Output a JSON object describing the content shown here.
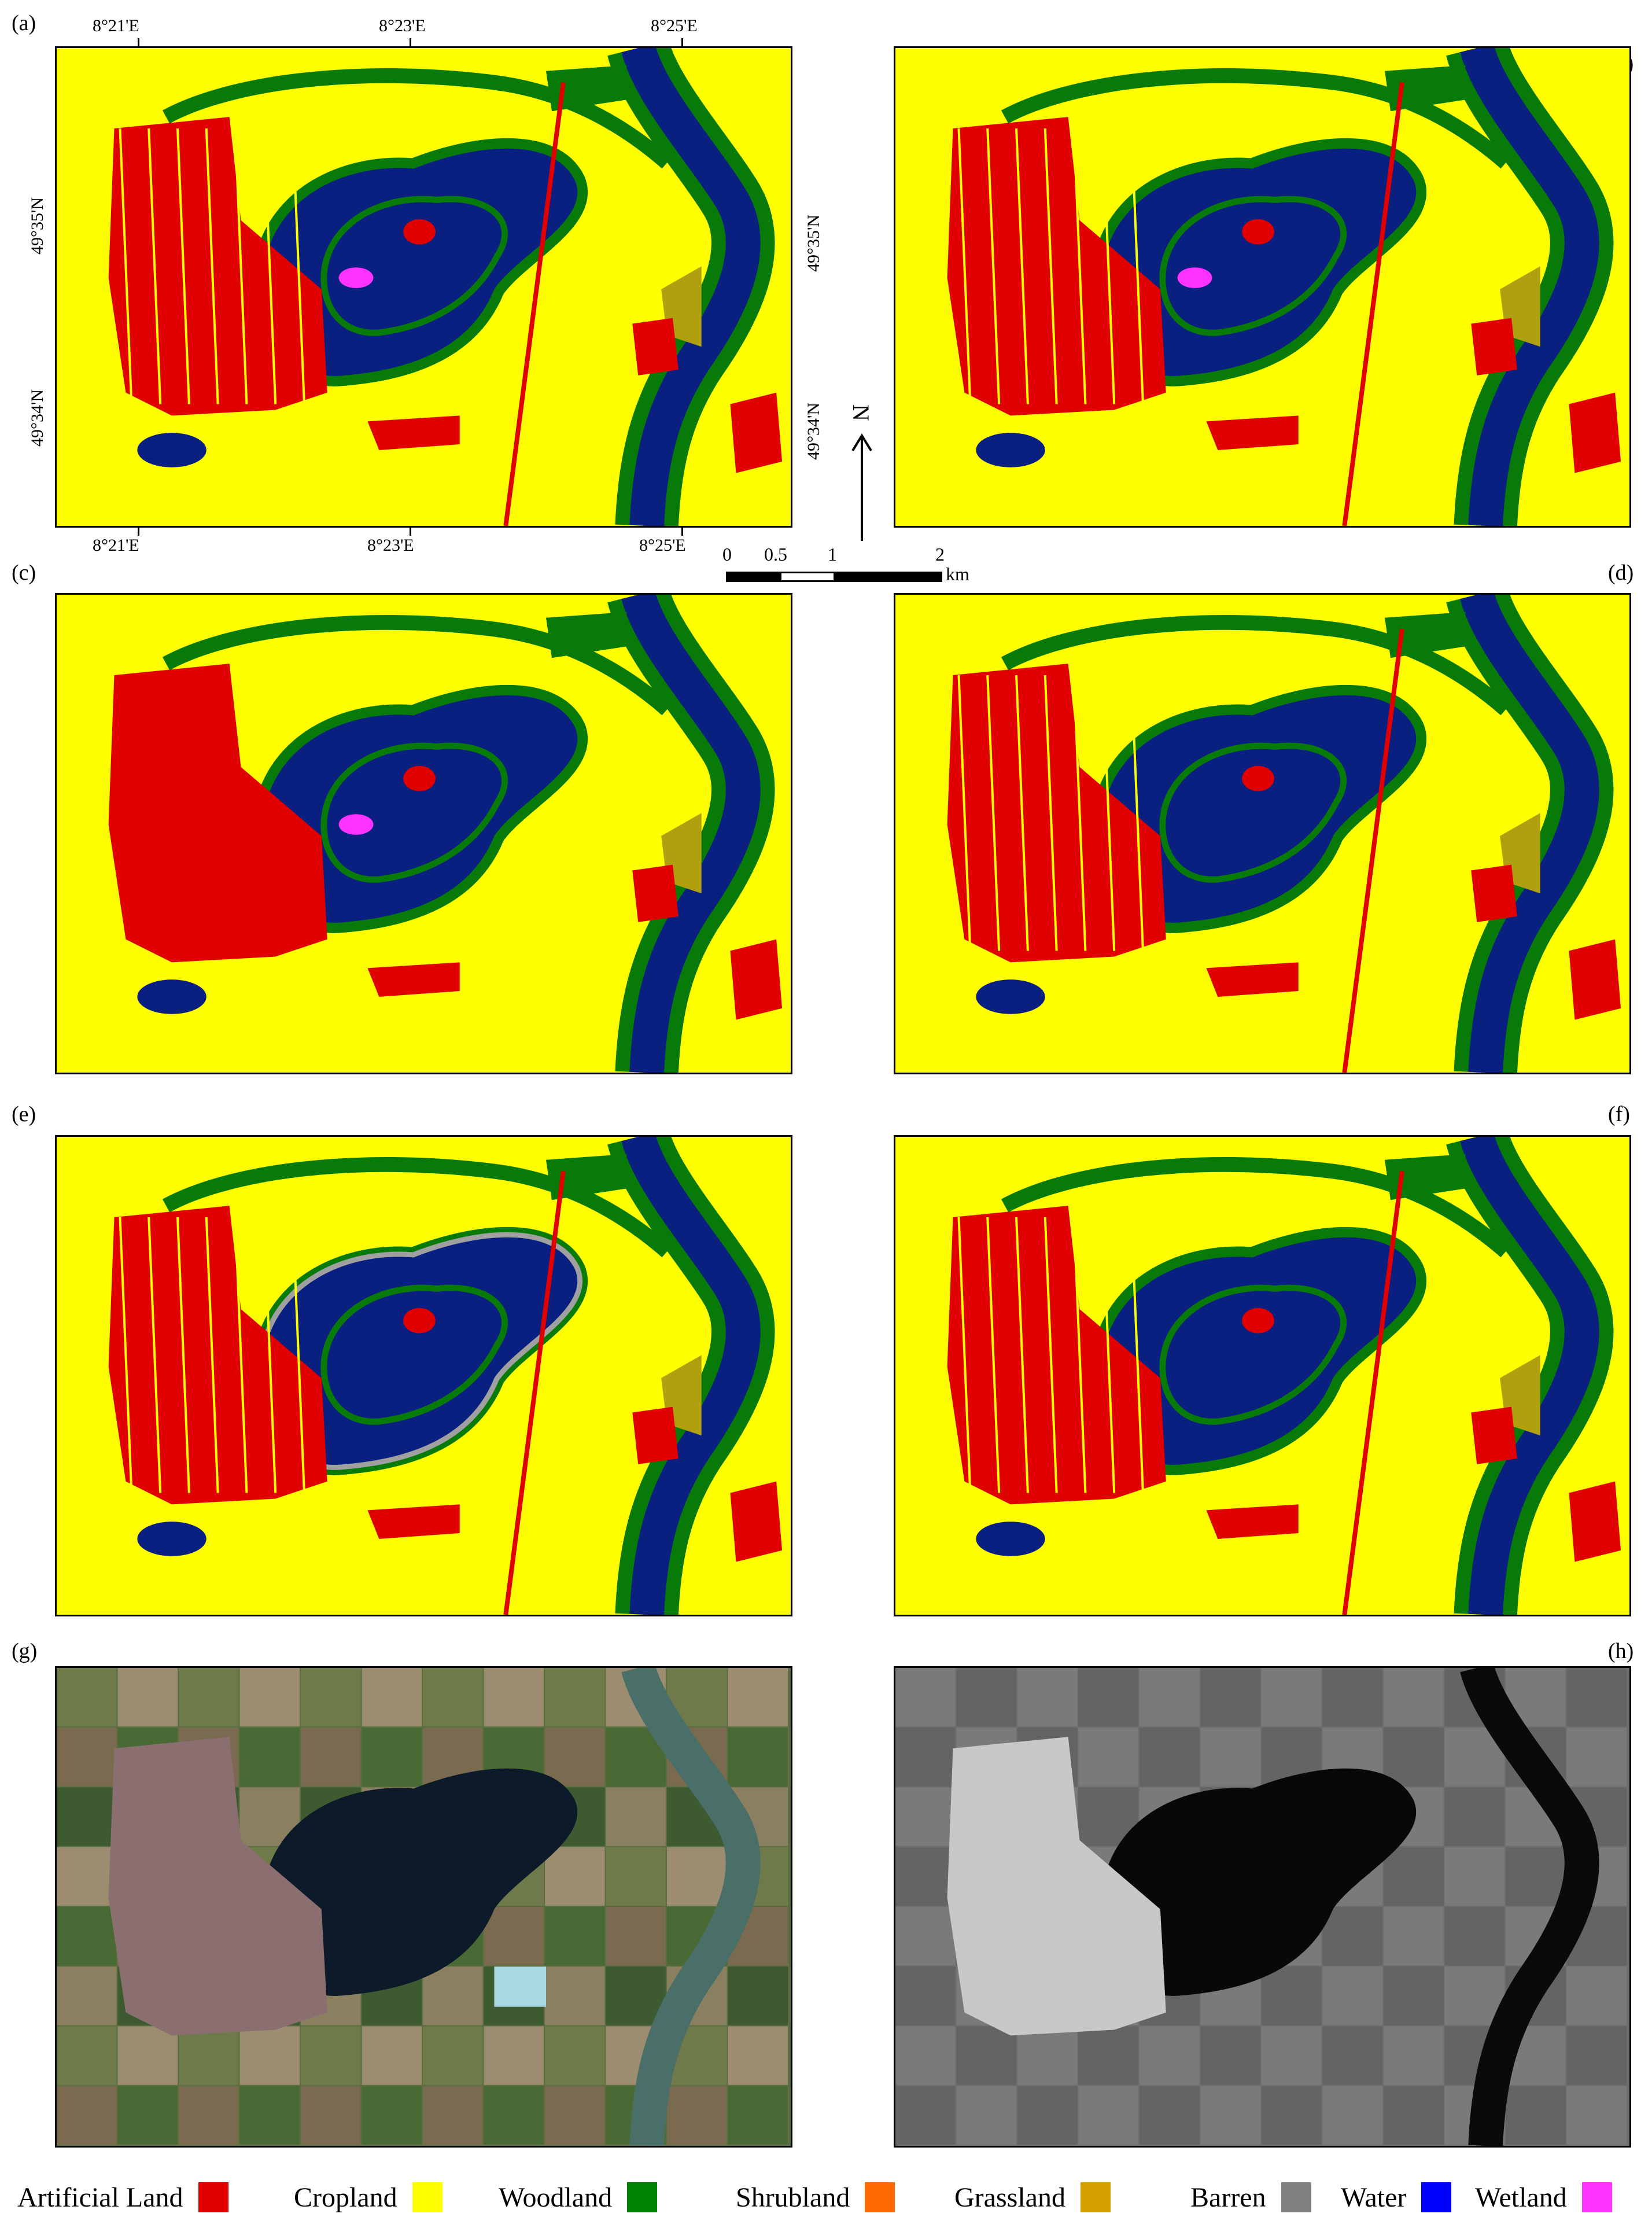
{
  "panels": {
    "a": "(a)",
    "b": "(b)",
    "c": "(c)",
    "d": "(d)",
    "e": "(e)",
    "f": "(f)",
    "g": "(g)",
    "h": "(h)"
  },
  "coordinates": {
    "top": [
      "8°21'E",
      "8°23'E",
      "8°25'E"
    ],
    "bottom": [
      "8°21'E",
      "8°23'E",
      "8°25'E"
    ],
    "left": [
      "49°35'N",
      "49°34'N"
    ],
    "right": [
      "49°35'N",
      "49°34'N"
    ]
  },
  "north_arrow": "N",
  "scale_bar": {
    "ticks": [
      "0",
      "0.5",
      "1",
      "2"
    ],
    "unit": "km"
  },
  "legend": [
    {
      "label": "Artificial Land",
      "color": "#e10000"
    },
    {
      "label": "Cropland",
      "color": "#ffff00"
    },
    {
      "label": "Woodland",
      "color": "#008000"
    },
    {
      "label": "Shrubland",
      "color": "#ff6a00"
    },
    {
      "label": "Grassland",
      "color": "#d4a000"
    },
    {
      "label": "Barren",
      "color": "#808080"
    },
    {
      "label": "Water",
      "color": "#0000ff"
    },
    {
      "label": "Wetland",
      "color": "#ff33ff"
    }
  ],
  "map_colors": {
    "cropland": "#ffff00",
    "artificial": "#e10000",
    "woodland": "#087a08",
    "water": "#0a2080",
    "barren": "#a0a0a0",
    "grass_olive": "#b0a010",
    "wetland": "#ff33ff"
  }
}
